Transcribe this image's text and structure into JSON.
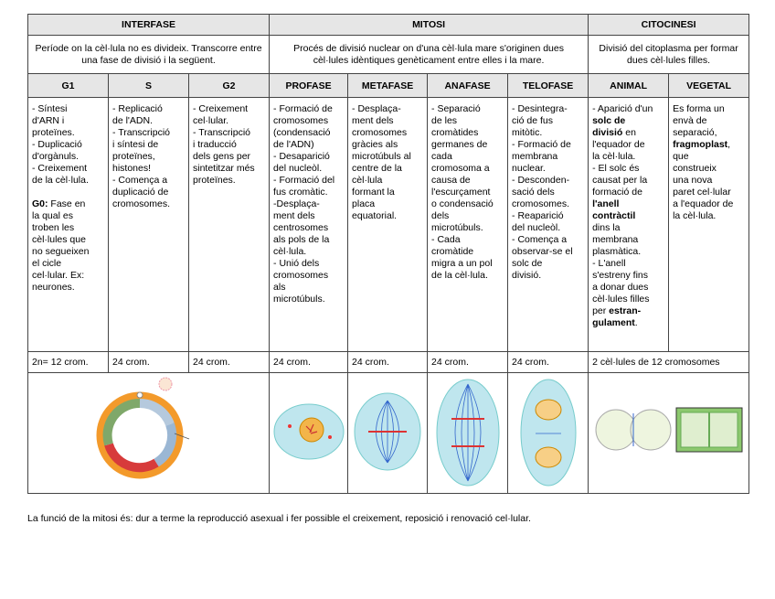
{
  "table": {
    "groups": [
      {
        "title": "INTERFASE",
        "description": "Període on la cèl·lula no es divideix. Transcorre entre una fase de divisió i la següent."
      },
      {
        "title": "MITOSI",
        "description": "Procés de divisió nuclear on d'una cèl·lula mare s'originen dues cèl·lules idèntiques genèticament entre elles i la mare."
      },
      {
        "title": "CITOCINESI",
        "description": "Divisió del citoplasma per formar dues cèl·lules filles."
      }
    ],
    "phases": [
      "G1",
      "S",
      "G2",
      "PROFASE",
      "METAFASE",
      "ANAFASE",
      "TELOFASE",
      "ANIMAL",
      "VEGETAL"
    ],
    "cells": [
      [
        [
          "- Síntesi",
          "d'ARN i",
          "proteïnes.",
          "- Duplicació",
          "d'orgànuls.",
          "- Creixement",
          "de la cèl·lula."
        ],
        [
          [
            {
              "bold": "G0:"
            },
            " Fase en"
          ],
          "la qual es",
          "troben les",
          "cèl·lules que",
          "no segueixen",
          "el cicle",
          "cel·lular. Ex:",
          "neurones."
        ]
      ],
      [
        [
          "- Replicació",
          "de l'ADN.",
          "- Transcripció",
          "i síntesi de",
          "proteïnes,",
          "histones!",
          "- Comença a",
          "duplicació de",
          "cromosomes."
        ]
      ],
      [
        [
          "- Creixement",
          "cel·lular.",
          "- Transcripció",
          "i traducció",
          "dels gens per",
          "sintetitzar més",
          "proteïnes."
        ]
      ],
      [
        [
          "- Formació de",
          "cromosomes",
          "(condensació",
          "de l'ADN)",
          "- Desaparició",
          "del nucleòl.",
          "- Formació del",
          "fus cromàtic.",
          "-Desplaça-",
          "ment dels",
          "centrosomes",
          "als pols de la",
          "cèl·lula.",
          "- Unió dels",
          "cromosomes",
          "als",
          "microtúbuls."
        ]
      ],
      [
        [
          "- Desplaça-",
          "ment dels",
          "cromosomes",
          "gràcies als",
          "microtúbuls al",
          "centre de la",
          "cèl·lula",
          "formant la",
          "placa",
          "equatorial."
        ]
      ],
      [
        [
          "- Separació",
          "de les",
          "cromàtides",
          "germanes de",
          "cada",
          "cromosoma a",
          "causa de",
          "l'escurçament",
          "o condensació",
          "dels",
          "microtúbuls.",
          "- Cada",
          "cromàtide",
          "migra a un pol",
          "de la cèl·lula."
        ]
      ],
      [
        [
          "- Desintegra-",
          "ció de fus",
          "mitòtic.",
          "- Formació de",
          "membrana",
          "nuclear.",
          "- Desconden-",
          "sació dels",
          "cromosomes.",
          "- Reaparició",
          "del nucleòl.",
          "- Comença a",
          "observar-se el",
          "solc de",
          "divisió."
        ]
      ],
      [
        [
          "- Aparició d'un",
          [
            {
              "bold": "solc de"
            }
          ],
          [
            {
              "bold": "divisió"
            },
            " en"
          ],
          "l'equador de",
          "la cèl·lula.",
          "- El solc és",
          "causat per la",
          "formació de",
          [
            {
              "bold": "l'anell"
            }
          ],
          [
            {
              "bold": "contràctil"
            }
          ],
          "dins la",
          "membrana",
          "plasmàtica.",
          "- L'anell",
          "s'estreny fins",
          "a donar dues",
          "cèl·lules filles",
          [
            "per ",
            {
              "bold": "estran-"
            }
          ],
          [
            {
              "bold": "gulament"
            },
            "."
          ]
        ]
      ],
      [
        [
          "Es forma un",
          "envà de",
          "separació,",
          [
            {
              "bold": "fragmoplast"
            },
            ","
          ],
          "que",
          "construeix",
          "una nova",
          "paret cel·lular",
          "a l'equador de",
          "la cèl·lula."
        ]
      ]
    ],
    "counts": [
      "2n= 12 crom.",
      "24 crom.",
      "24 crom.",
      "24 crom.",
      "24 crom.",
      "24 crom.",
      "24 crom.",
      "2 cèl·lules de 12 cromosomes"
    ]
  },
  "footer": "La funció de la mitosi és: dur a terme la reproducció asexual i fer possible el creixement, reposició i renovació cel·lular."
}
